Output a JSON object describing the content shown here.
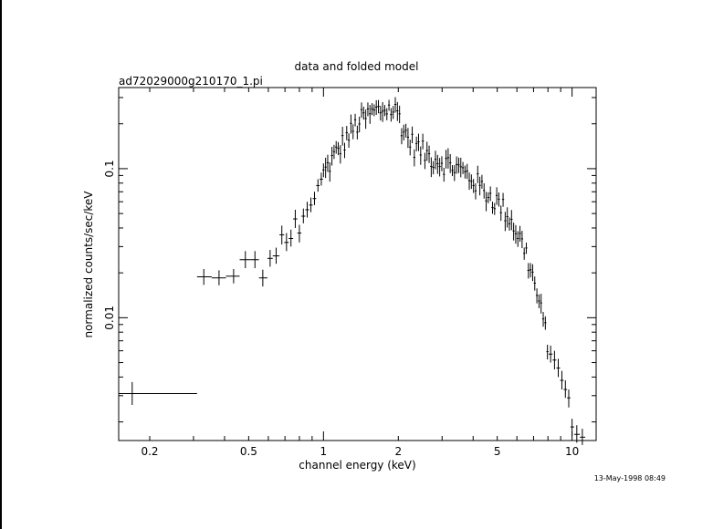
{
  "chart_data": {
    "type": "scatter",
    "title": "data and folded model",
    "subtitle": "ad72029000g210170_1.pi",
    "xlabel": "channel energy (keV)",
    "ylabel": "normalized counts/sec/keV",
    "x_scale": "log",
    "y_scale": "log",
    "xlim": [
      0.15,
      12.5
    ],
    "ylim": [
      0.0015,
      0.35
    ],
    "x_ticks": [
      {
        "value": 0.2,
        "label": "0.2"
      },
      {
        "value": 0.5,
        "label": "0.5"
      },
      {
        "value": 1,
        "label": "1"
      },
      {
        "value": 2,
        "label": "2"
      },
      {
        "value": 5,
        "label": "5"
      },
      {
        "value": 10,
        "label": "10"
      }
    ],
    "y_ticks": [
      {
        "value": 0.01,
        "label": "0.01"
      },
      {
        "value": 0.1,
        "label": "0.1"
      }
    ],
    "series": [
      {
        "style": "crosses",
        "points": [
          {
            "x": 0.17,
            "xlo": 0.15,
            "xhi": 0.31,
            "y": 0.0031,
            "ylo": 0.0026,
            "yhi": 0.0037
          },
          {
            "x": 0.33,
            "xlo": 0.31,
            "xhi": 0.355,
            "y": 0.0188,
            "ylo": 0.0166,
            "yhi": 0.0212
          },
          {
            "x": 0.38,
            "xlo": 0.355,
            "xhi": 0.405,
            "y": 0.0185,
            "ylo": 0.0165,
            "yhi": 0.0208
          },
          {
            "x": 0.435,
            "xlo": 0.405,
            "xhi": 0.46,
            "y": 0.019,
            "ylo": 0.017,
            "yhi": 0.0212
          },
          {
            "x": 0.485,
            "xlo": 0.46,
            "xhi": 0.51,
            "y": 0.0245,
            "ylo": 0.0215,
            "yhi": 0.028
          },
          {
            "x": 0.53,
            "xlo": 0.51,
            "xhi": 0.55,
            "y": 0.0245,
            "ylo": 0.0215,
            "yhi": 0.028
          },
          {
            "x": 0.57,
            "xlo": 0.55,
            "xhi": 0.595,
            "y": 0.0185,
            "ylo": 0.0162,
            "yhi": 0.021
          },
          {
            "x": 0.61,
            "xlo": 0.595,
            "xhi": 0.625,
            "y": 0.025,
            "ylo": 0.022,
            "yhi": 0.0285
          },
          {
            "x": 0.645,
            "xlo": 0.625,
            "xhi": 0.665,
            "y": 0.026,
            "ylo": 0.023,
            "yhi": 0.0295
          },
          {
            "x": 0.68,
            "xlo": 0.665,
            "xhi": 0.695,
            "y": 0.036,
            "ylo": 0.031,
            "yhi": 0.0415
          },
          {
            "x": 0.71,
            "xlo": 0.695,
            "xhi": 0.725,
            "y": 0.032,
            "ylo": 0.028,
            "yhi": 0.037
          },
          {
            "x": 0.74,
            "xlo": 0.725,
            "xhi": 0.755,
            "y": 0.034,
            "ylo": 0.03,
            "yhi": 0.039
          },
          {
            "x": 0.77,
            "xlo": 0.755,
            "xhi": 0.785,
            "y": 0.046,
            "ylo": 0.04,
            "yhi": 0.053
          },
          {
            "x": 0.8,
            "xlo": 0.785,
            "xhi": 0.815,
            "y": 0.037,
            "ylo": 0.032,
            "yhi": 0.042
          },
          {
            "x": 0.83,
            "xlo": 0.815,
            "xhi": 0.845,
            "y": 0.048,
            "ylo": 0.043,
            "yhi": 0.054
          },
          {
            "x": 0.86,
            "xlo": 0.845,
            "xhi": 0.875,
            "y": 0.053,
            "ylo": 0.047,
            "yhi": 0.06
          },
          {
            "x": 0.89,
            "xlo": 0.875,
            "xhi": 0.905,
            "y": 0.057,
            "ylo": 0.051,
            "yhi": 0.064
          },
          {
            "x": 0.92,
            "xlo": 0.905,
            "xhi": 0.935,
            "y": 0.063,
            "ylo": 0.057,
            "yhi": 0.07
          },
          {
            "x": 0.95,
            "xlo": 0.935,
            "xhi": 0.965,
            "y": 0.077,
            "ylo": 0.07,
            "yhi": 0.085
          },
          {
            "x": 0.98,
            "xlo": 0.965,
            "xhi": 0.995,
            "y": 0.085,
            "ylo": 0.077,
            "yhi": 0.094
          },
          {
            "x": 8.2,
            "xlo": 8.05,
            "xhi": 8.35,
            "y": 0.0057,
            "ylo": 0.005,
            "yhi": 0.0065
          },
          {
            "x": 8.5,
            "xlo": 8.35,
            "xhi": 8.65,
            "y": 0.0052,
            "ylo": 0.0045,
            "yhi": 0.006
          },
          {
            "x": 8.8,
            "xlo": 8.65,
            "xhi": 8.95,
            "y": 0.0046,
            "ylo": 0.004,
            "yhi": 0.0053
          },
          {
            "x": 9.1,
            "xlo": 8.95,
            "xhi": 9.25,
            "y": 0.0038,
            "ylo": 0.0033,
            "yhi": 0.0044
          },
          {
            "x": 9.4,
            "xlo": 9.25,
            "xhi": 9.55,
            "y": 0.0033,
            "ylo": 0.0029,
            "yhi": 0.0038
          },
          {
            "x": 9.7,
            "xlo": 9.55,
            "xhi": 9.85,
            "y": 0.0029,
            "ylo": 0.0025,
            "yhi": 0.0033
          },
          {
            "x": 10.0,
            "xlo": 9.85,
            "xhi": 10.2,
            "y": 0.00185,
            "ylo": 0.0016,
            "yhi": 0.0021
          },
          {
            "x": 10.45,
            "xlo": 10.2,
            "xhi": 10.75,
            "y": 0.00165,
            "ylo": 0.00145,
            "yhi": 0.0019
          },
          {
            "x": 11.0,
            "xlo": 10.75,
            "xhi": 11.3,
            "y": 0.00158,
            "ylo": 0.0014,
            "yhi": 0.0018
          }
        ]
      },
      {
        "style": "dense-crosses",
        "bin_width_fraction": 0.0085,
        "rel_error": 0.12,
        "x_range": [
          1.0,
          8.0
        ],
        "curve_x": [
          1.0,
          1.2,
          1.4,
          1.6,
          1.8,
          2.0,
          2.1,
          2.3,
          2.6,
          3.0,
          3.5,
          4.0,
          4.5,
          5.0,
          5.5,
          6.0,
          6.5,
          7.0,
          7.5,
          8.0
        ],
        "curve_y": [
          0.093,
          0.15,
          0.21,
          0.24,
          0.255,
          0.24,
          0.18,
          0.145,
          0.125,
          0.112,
          0.1,
          0.085,
          0.07,
          0.06,
          0.05,
          0.038,
          0.028,
          0.018,
          0.011,
          0.0068
        ]
      }
    ]
  },
  "timestamp": "13-May-1998 08:49"
}
